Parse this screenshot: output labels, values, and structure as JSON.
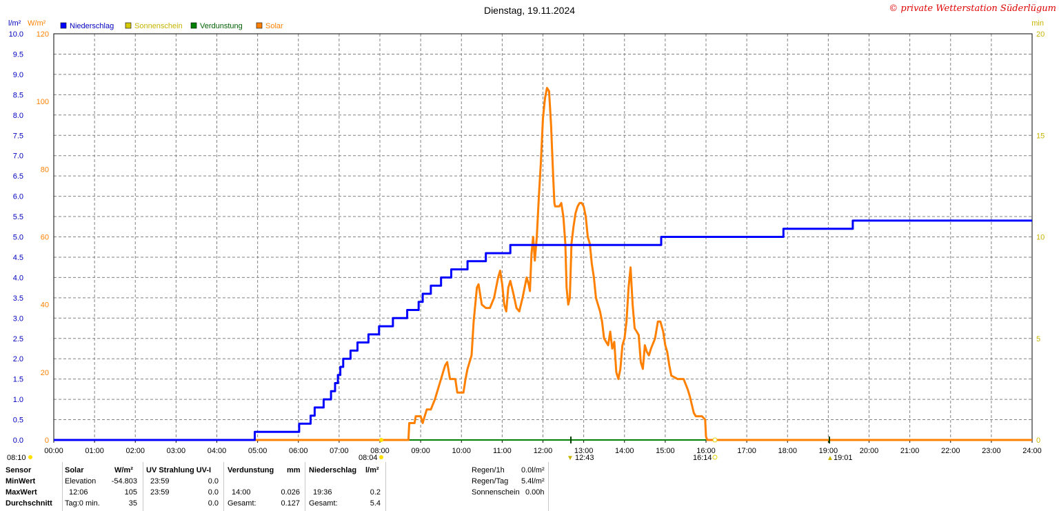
{
  "title": "Dienstag, 19.11.2024",
  "copyright": "© private Wetterstation Süderlügum",
  "axis_units": {
    "left_precip": "l/m²",
    "left_solar": "W/m²",
    "right_min": "min"
  },
  "legend": [
    {
      "label": "Niederschlag",
      "color": "#0000ff"
    },
    {
      "label": "Sonnenschein",
      "color": "#d4c800"
    },
    {
      "label": "Verdunstung",
      "color": "#008000"
    },
    {
      "label": "Solar",
      "color": "#ff8000"
    }
  ],
  "markers": {
    "sunrise": "08:04",
    "sunset": "16:14",
    "moonset": "08:10",
    "culmination": "12:43",
    "moonrise": "19:01"
  },
  "chart_data": {
    "type": "line",
    "title": "Dienstag, 19.11.2024",
    "x_tick_labels": [
      "00:00",
      "01:00",
      "02:00",
      "03:00",
      "04:00",
      "05:00",
      "06:00",
      "07:00",
      "08:00",
      "09:00",
      "10:00",
      "11:00",
      "12:00",
      "13:00",
      "14:00",
      "15:00",
      "16:00",
      "17:00",
      "18:00",
      "19:00",
      "20:00",
      "21:00",
      "22:00",
      "23:00",
      "24:00"
    ],
    "xlim": [
      0,
      24
    ],
    "y_precip_ticks": [
      "0.0",
      "0.5",
      "1.0",
      "1.5",
      "2.0",
      "2.5",
      "3.0",
      "3.5",
      "4.0",
      "4.5",
      "5.0",
      "5.5",
      "6.0",
      "6.5",
      "7.0",
      "7.5",
      "8.0",
      "8.5",
      "9.0",
      "9.5",
      "10.0"
    ],
    "y_precip_lim": [
      0,
      10
    ],
    "y_solar_ticks": [
      "0",
      "20",
      "40",
      "60",
      "80",
      "100",
      "120"
    ],
    "y_solar_lim": [
      0,
      120
    ],
    "y_min_ticks": [
      "0",
      "5",
      "10",
      "15",
      "20"
    ],
    "y_min_lim": [
      0,
      20
    ],
    "grid": true,
    "series": [
      {
        "name": "Niederschlag",
        "color": "#0000ff",
        "axis": "precip",
        "step": true,
        "points": [
          [
            0,
            0
          ],
          [
            4.93,
            0
          ],
          [
            4.93,
            0.2
          ],
          [
            6.02,
            0.2
          ],
          [
            6.02,
            0.4
          ],
          [
            6.3,
            0.4
          ],
          [
            6.3,
            0.6
          ],
          [
            6.4,
            0.6
          ],
          [
            6.4,
            0.8
          ],
          [
            6.62,
            0.8
          ],
          [
            6.62,
            1.0
          ],
          [
            6.8,
            1.0
          ],
          [
            6.8,
            1.2
          ],
          [
            6.9,
            1.2
          ],
          [
            6.9,
            1.4
          ],
          [
            6.97,
            1.4
          ],
          [
            6.97,
            1.6
          ],
          [
            7.03,
            1.6
          ],
          [
            7.03,
            1.8
          ],
          [
            7.1,
            1.8
          ],
          [
            7.1,
            2.0
          ],
          [
            7.28,
            2.0
          ],
          [
            7.28,
            2.2
          ],
          [
            7.45,
            2.2
          ],
          [
            7.45,
            2.4
          ],
          [
            7.72,
            2.4
          ],
          [
            7.72,
            2.6
          ],
          [
            7.98,
            2.6
          ],
          [
            7.98,
            2.8
          ],
          [
            8.32,
            2.8
          ],
          [
            8.32,
            3.0
          ],
          [
            8.67,
            3.0
          ],
          [
            8.67,
            3.2
          ],
          [
            8.95,
            3.2
          ],
          [
            8.95,
            3.4
          ],
          [
            9.05,
            3.4
          ],
          [
            9.05,
            3.6
          ],
          [
            9.25,
            3.6
          ],
          [
            9.25,
            3.8
          ],
          [
            9.5,
            3.8
          ],
          [
            9.5,
            4.0
          ],
          [
            9.75,
            4.0
          ],
          [
            9.75,
            4.2
          ],
          [
            10.15,
            4.2
          ],
          [
            10.15,
            4.4
          ],
          [
            10.6,
            4.4
          ],
          [
            10.6,
            4.6
          ],
          [
            11.2,
            4.6
          ],
          [
            11.2,
            4.8
          ],
          [
            14.9,
            4.8
          ],
          [
            14.9,
            5.0
          ],
          [
            17.9,
            5.0
          ],
          [
            17.9,
            5.2
          ],
          [
            19.6,
            5.2
          ],
          [
            19.6,
            5.4
          ],
          [
            24,
            5.4
          ]
        ]
      },
      {
        "name": "Solar",
        "color": "#ff8000",
        "axis": "solar",
        "points": [
          [
            0,
            0
          ],
          [
            8.7,
            0
          ],
          [
            8.72,
            5
          ],
          [
            8.85,
            5
          ],
          [
            8.88,
            7
          ],
          [
            9.0,
            7
          ],
          [
            9.05,
            5
          ],
          [
            9.1,
            7
          ],
          [
            9.15,
            9
          ],
          [
            9.25,
            9
          ],
          [
            9.35,
            12
          ],
          [
            9.45,
            16
          ],
          [
            9.55,
            20
          ],
          [
            9.6,
            22
          ],
          [
            9.65,
            23
          ],
          [
            9.72,
            18
          ],
          [
            9.85,
            18
          ],
          [
            9.9,
            14
          ],
          [
            10.05,
            14
          ],
          [
            10.1,
            18
          ],
          [
            10.15,
            21
          ],
          [
            10.25,
            25
          ],
          [
            10.3,
            35
          ],
          [
            10.38,
            45
          ],
          [
            10.42,
            46
          ],
          [
            10.5,
            40
          ],
          [
            10.6,
            39
          ],
          [
            10.7,
            39
          ],
          [
            10.8,
            42
          ],
          [
            10.9,
            48
          ],
          [
            10.95,
            50
          ],
          [
            11.0,
            46
          ],
          [
            11.05,
            40
          ],
          [
            11.1,
            38
          ],
          [
            11.15,
            45
          ],
          [
            11.2,
            47
          ],
          [
            11.28,
            43
          ],
          [
            11.35,
            39
          ],
          [
            11.42,
            38
          ],
          [
            11.5,
            42
          ],
          [
            11.6,
            48
          ],
          [
            11.65,
            46
          ],
          [
            11.68,
            44
          ],
          [
            11.72,
            55
          ],
          [
            11.76,
            60
          ],
          [
            11.8,
            53
          ],
          [
            11.85,
            60
          ],
          [
            11.9,
            72
          ],
          [
            11.95,
            82
          ],
          [
            12.0,
            95
          ],
          [
            12.05,
            101
          ],
          [
            12.1,
            104
          ],
          [
            12.15,
            103
          ],
          [
            12.2,
            93
          ],
          [
            12.25,
            78
          ],
          [
            12.28,
            70
          ],
          [
            12.3,
            69
          ],
          [
            12.4,
            69
          ],
          [
            12.45,
            70
          ],
          [
            12.5,
            66
          ],
          [
            12.55,
            58
          ],
          [
            12.58,
            45
          ],
          [
            12.62,
            40
          ],
          [
            12.66,
            42
          ],
          [
            12.7,
            58
          ],
          [
            12.75,
            63
          ],
          [
            12.8,
            67
          ],
          [
            12.85,
            69
          ],
          [
            12.9,
            70
          ],
          [
            12.95,
            70
          ],
          [
            13.0,
            69
          ],
          [
            13.05,
            66
          ],
          [
            13.1,
            60
          ],
          [
            13.15,
            58
          ],
          [
            13.2,
            52
          ],
          [
            13.25,
            48
          ],
          [
            13.3,
            42
          ],
          [
            13.4,
            38
          ],
          [
            13.45,
            35
          ],
          [
            13.5,
            30
          ],
          [
            13.6,
            28
          ],
          [
            13.65,
            32
          ],
          [
            13.7,
            27
          ],
          [
            13.75,
            29
          ],
          [
            13.8,
            20
          ],
          [
            13.85,
            18
          ],
          [
            13.9,
            21
          ],
          [
            13.95,
            28
          ],
          [
            14.0,
            30
          ],
          [
            14.05,
            35
          ],
          [
            14.1,
            45
          ],
          [
            14.15,
            51
          ],
          [
            14.2,
            40
          ],
          [
            14.25,
            33
          ],
          [
            14.3,
            32
          ],
          [
            14.35,
            31
          ],
          [
            14.4,
            23
          ],
          [
            14.45,
            21
          ],
          [
            14.5,
            28
          ],
          [
            14.55,
            26
          ],
          [
            14.6,
            25
          ],
          [
            14.65,
            27
          ],
          [
            14.75,
            30
          ],
          [
            14.82,
            35
          ],
          [
            14.88,
            35
          ],
          [
            14.95,
            32
          ],
          [
            15.0,
            28
          ],
          [
            15.05,
            26
          ],
          [
            15.1,
            22
          ],
          [
            15.15,
            19
          ],
          [
            15.3,
            18
          ],
          [
            15.45,
            18
          ],
          [
            15.55,
            15
          ],
          [
            15.6,
            13
          ],
          [
            15.7,
            8
          ],
          [
            15.75,
            7
          ],
          [
            15.9,
            7
          ],
          [
            15.98,
            6
          ],
          [
            16.0,
            1
          ],
          [
            16.03,
            0
          ],
          [
            24,
            0
          ]
        ]
      },
      {
        "name": "Verdunstung",
        "color": "#008000",
        "axis": "precip",
        "points": [
          [
            0,
            0
          ],
          [
            24,
            0
          ]
        ]
      }
    ]
  },
  "stats": {
    "header": {
      "sensor": "Sensor",
      "solar": "Solar",
      "solar_unit": "W/m²",
      "uv": "UV Strahlung UV-I",
      "verdunstung": "Verdunstung",
      "verdunstung_unit": "mm",
      "niederschlag": "Niederschlag",
      "niederschlag_unit": "l/m²"
    },
    "rows": [
      {
        "label": "MinWert",
        "solar_a": "Elevation",
        "solar_b": "-54.803",
        "uv_a": "23:59",
        "uv_b": "0.0",
        "ver_a": "",
        "ver_b": "",
        "nie_a": "",
        "nie_b": ""
      },
      {
        "label": "MaxWert",
        "solar_a": "12:06",
        "solar_b": "105",
        "uv_a": "23:59",
        "uv_b": "0.0",
        "ver_a": "14:00",
        "ver_b": "0.026",
        "nie_a": "19:36",
        "nie_b": "0.2"
      },
      {
        "label": "Durchschnitt",
        "solar_a": "Tag:0 min.",
        "solar_b": "35",
        "uv_a": "",
        "uv_b": "0.0",
        "ver_a": "Gesamt:",
        "ver_b": "0.127",
        "nie_a": "Gesamt:",
        "nie_b": "5.4"
      }
    ],
    "rain": [
      {
        "label": "Regen/1h",
        "value": "0.0l/m²"
      },
      {
        "label": "Regen/Tag",
        "value": "5.4l/m²"
      },
      {
        "label": "Sonnenschein",
        "value": "0.00h"
      }
    ]
  }
}
